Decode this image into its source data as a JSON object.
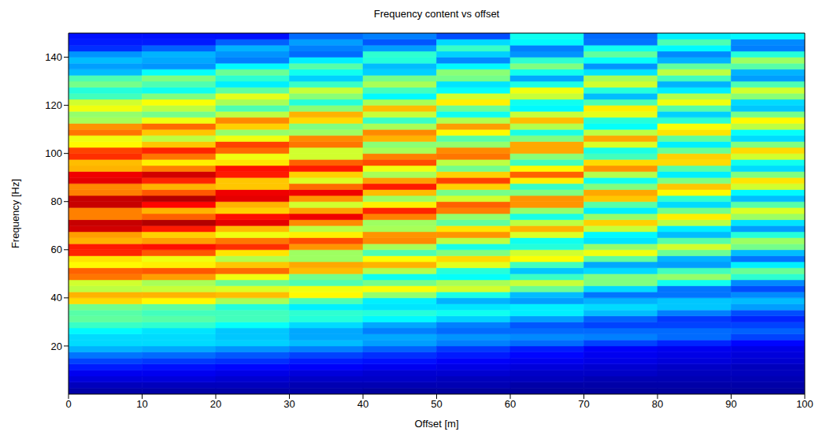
{
  "chart_data": {
    "type": "heatmap",
    "title": "Frequency content vs offset",
    "x_label": "Offset [m]",
    "y_label": "Frequency [Hz]",
    "xlim": [
      0,
      100
    ],
    "ylim": [
      0,
      150
    ],
    "xticks": [
      0,
      10,
      20,
      30,
      40,
      50,
      60,
      70,
      80,
      90,
      100
    ],
    "yticks": [
      20,
      40,
      60,
      80,
      100,
      120,
      140
    ],
    "color_range": [
      0,
      1
    ],
    "x_bins": [
      0,
      10,
      20,
      30,
      40,
      50,
      60,
      70,
      80,
      90,
      100
    ],
    "y_bins": [
      0,
      2.5,
      5,
      7.5,
      10,
      12.5,
      15,
      17.5,
      20,
      22.5,
      25,
      27.5,
      30,
      32.5,
      35,
      37.5,
      40,
      42.5,
      45,
      47.5,
      50,
      52.5,
      55,
      57.5,
      60,
      62.5,
      65,
      67.5,
      70,
      72.5,
      75,
      77.5,
      80,
      82.5,
      85,
      87.5,
      90,
      92.5,
      95,
      97.5,
      100,
      102.5,
      105,
      107.5,
      110,
      112.5,
      115,
      117.5,
      120,
      122.5,
      125,
      127.5,
      130,
      132.5,
      135,
      137.5,
      140,
      142.5,
      145,
      147.5,
      150
    ],
    "cells": [
      [
        0.04,
        0.06,
        0.09,
        0.11,
        0.15,
        0.19,
        0.24,
        0.3,
        0.34,
        0.34,
        0.37,
        0.43,
        0.47,
        0.46,
        0.49,
        0.66,
        0.7,
        0.56,
        0.58,
        0.76,
        0.78,
        0.63,
        0.65,
        0.84,
        0.85,
        0.7,
        0.72,
        0.92,
        0.93,
        0.75,
        0.75,
        0.93,
        0.93,
        0.75,
        0.74,
        0.9,
        0.89,
        0.7,
        0.69,
        0.83,
        0.81,
        0.63,
        0.61,
        0.76,
        0.73,
        0.54,
        0.52,
        0.61,
        0.58,
        0.44,
        0.41,
        0.49,
        0.45,
        0.31,
        0.28,
        0.31,
        0.27,
        0.17,
        0.15,
        0.14
      ],
      [
        0.04,
        0.06,
        0.09,
        0.11,
        0.14,
        0.18,
        0.23,
        0.29,
        0.34,
        0.34,
        0.35,
        0.42,
        0.46,
        0.44,
        0.47,
        0.63,
        0.7,
        0.57,
        0.54,
        0.72,
        0.79,
        0.64,
        0.61,
        0.79,
        0.86,
        0.72,
        0.67,
        0.85,
        0.95,
        0.78,
        0.7,
        0.87,
        0.95,
        0.79,
        0.7,
        0.84,
        0.92,
        0.75,
        0.64,
        0.76,
        0.84,
        0.68,
        0.56,
        0.68,
        0.77,
        0.61,
        0.49,
        0.56,
        0.62,
        0.5,
        0.39,
        0.45,
        0.5,
        0.38,
        0.27,
        0.29,
        0.3,
        0.22,
        0.15,
        0.14
      ],
      [
        0.04,
        0.06,
        0.08,
        0.1,
        0.13,
        0.17,
        0.21,
        0.27,
        0.33,
        0.32,
        0.32,
        0.38,
        0.44,
        0.44,
        0.41,
        0.54,
        0.69,
        0.59,
        0.48,
        0.61,
        0.77,
        0.68,
        0.55,
        0.65,
        0.83,
        0.76,
        0.61,
        0.69,
        0.9,
        0.86,
        0.67,
        0.7,
        0.9,
        0.89,
        0.68,
        0.68,
        0.85,
        0.86,
        0.65,
        0.61,
        0.77,
        0.81,
        0.61,
        0.52,
        0.67,
        0.74,
        0.56,
        0.45,
        0.54,
        0.6,
        0.47,
        0.36,
        0.42,
        0.48,
        0.37,
        0.25,
        0.27,
        0.3,
        0.22,
        0.14
      ],
      [
        0.04,
        0.05,
        0.07,
        0.09,
        0.12,
        0.15,
        0.19,
        0.25,
        0.31,
        0.29,
        0.29,
        0.34,
        0.41,
        0.42,
        0.36,
        0.45,
        0.63,
        0.61,
        0.45,
        0.49,
        0.69,
        0.71,
        0.53,
        0.53,
        0.73,
        0.8,
        0.64,
        0.56,
        0.74,
        0.89,
        0.72,
        0.58,
        0.73,
        0.89,
        0.77,
        0.59,
        0.67,
        0.85,
        0.78,
        0.58,
        0.58,
        0.76,
        0.74,
        0.53,
        0.5,
        0.66,
        0.7,
        0.51,
        0.41,
        0.51,
        0.57,
        0.43,
        0.33,
        0.39,
        0.46,
        0.36,
        0.23,
        0.25,
        0.28,
        0.23
      ],
      [
        0.03,
        0.05,
        0.07,
        0.08,
        0.11,
        0.14,
        0.17,
        0.22,
        0.28,
        0.29,
        0.25,
        0.29,
        0.37,
        0.41,
        0.35,
        0.36,
        0.52,
        0.62,
        0.49,
        0.39,
        0.55,
        0.7,
        0.62,
        0.45,
        0.54,
        0.74,
        0.73,
        0.54,
        0.53,
        0.75,
        0.84,
        0.64,
        0.53,
        0.69,
        0.85,
        0.72,
        0.54,
        0.61,
        0.8,
        0.75,
        0.54,
        0.51,
        0.7,
        0.74,
        0.54,
        0.43,
        0.57,
        0.69,
        0.54,
        0.37,
        0.44,
        0.54,
        0.49,
        0.33,
        0.31,
        0.41,
        0.42,
        0.28,
        0.21,
        0.25
      ],
      [
        0.03,
        0.05,
        0.06,
        0.08,
        0.1,
        0.12,
        0.15,
        0.18,
        0.25,
        0.27,
        0.23,
        0.25,
        0.33,
        0.39,
        0.35,
        0.3,
        0.4,
        0.58,
        0.54,
        0.38,
        0.41,
        0.6,
        0.66,
        0.5,
        0.4,
        0.56,
        0.73,
        0.65,
        0.47,
        0.52,
        0.75,
        0.78,
        0.58,
        0.49,
        0.67,
        0.81,
        0.67,
        0.49,
        0.56,
        0.76,
        0.74,
        0.52,
        0.46,
        0.63,
        0.72,
        0.55,
        0.39,
        0.48,
        0.64,
        0.58,
        0.38,
        0.35,
        0.49,
        0.51,
        0.37,
        0.26,
        0.33,
        0.43,
        0.34,
        0.2
      ],
      [
        0.03,
        0.04,
        0.06,
        0.07,
        0.09,
        0.11,
        0.13,
        0.15,
        0.23,
        0.26,
        0.23,
        0.21,
        0.28,
        0.36,
        0.36,
        0.28,
        0.31,
        0.48,
        0.57,
        0.43,
        0.32,
        0.44,
        0.62,
        0.58,
        0.41,
        0.39,
        0.59,
        0.7,
        0.56,
        0.4,
        0.52,
        0.73,
        0.73,
        0.5,
        0.43,
        0.64,
        0.78,
        0.63,
        0.44,
        0.51,
        0.71,
        0.71,
        0.5,
        0.4,
        0.55,
        0.69,
        0.57,
        0.37,
        0.39,
        0.57,
        0.61,
        0.4,
        0.29,
        0.39,
        0.5,
        0.42,
        0.27,
        0.25,
        0.37,
        0.39
      ],
      [
        0.03,
        0.04,
        0.05,
        0.07,
        0.08,
        0.1,
        0.11,
        0.12,
        0.19,
        0.25,
        0.23,
        0.19,
        0.22,
        0.31,
        0.34,
        0.3,
        0.24,
        0.34,
        0.5,
        0.5,
        0.34,
        0.29,
        0.47,
        0.61,
        0.52,
        0.35,
        0.37,
        0.57,
        0.67,
        0.52,
        0.36,
        0.46,
        0.68,
        0.71,
        0.5,
        0.39,
        0.55,
        0.73,
        0.66,
        0.44,
        0.4,
        0.59,
        0.71,
        0.56,
        0.38,
        0.41,
        0.6,
        0.64,
        0.45,
        0.31,
        0.41,
        0.58,
        0.54,
        0.35,
        0.27,
        0.38,
        0.47,
        0.39,
        0.24,
        0.23
      ],
      [
        0.03,
        0.04,
        0.05,
        0.06,
        0.07,
        0.09,
        0.1,
        0.11,
        0.16,
        0.23,
        0.23,
        0.19,
        0.18,
        0.25,
        0.32,
        0.32,
        0.24,
        0.24,
        0.39,
        0.52,
        0.44,
        0.28,
        0.3,
        0.48,
        0.58,
        0.46,
        0.31,
        0.36,
        0.56,
        0.64,
        0.49,
        0.34,
        0.42,
        0.63,
        0.68,
        0.5,
        0.36,
        0.46,
        0.66,
        0.67,
        0.48,
        0.36,
        0.47,
        0.65,
        0.62,
        0.42,
        0.33,
        0.46,
        0.61,
        0.55,
        0.36,
        0.3,
        0.44,
        0.56,
        0.47,
        0.3,
        0.26,
        0.37,
        0.45,
        0.36
      ],
      [
        0.03,
        0.04,
        0.05,
        0.06,
        0.06,
        0.08,
        0.09,
        0.1,
        0.13,
        0.19,
        0.22,
        0.19,
        0.16,
        0.2,
        0.28,
        0.31,
        0.26,
        0.2,
        0.26,
        0.42,
        0.48,
        0.36,
        0.24,
        0.31,
        0.49,
        0.53,
        0.41,
        0.28,
        0.35,
        0.53,
        0.59,
        0.46,
        0.31,
        0.37,
        0.58,
        0.65,
        0.5,
        0.34,
        0.39,
        0.58,
        0.66,
        0.5,
        0.34,
        0.38,
        0.56,
        0.63,
        0.49,
        0.32,
        0.34,
        0.51,
        0.58,
        0.45,
        0.28,
        0.3,
        0.46,
        0.53,
        0.41,
        0.25,
        0.26,
        0.37
      ]
    ]
  }
}
